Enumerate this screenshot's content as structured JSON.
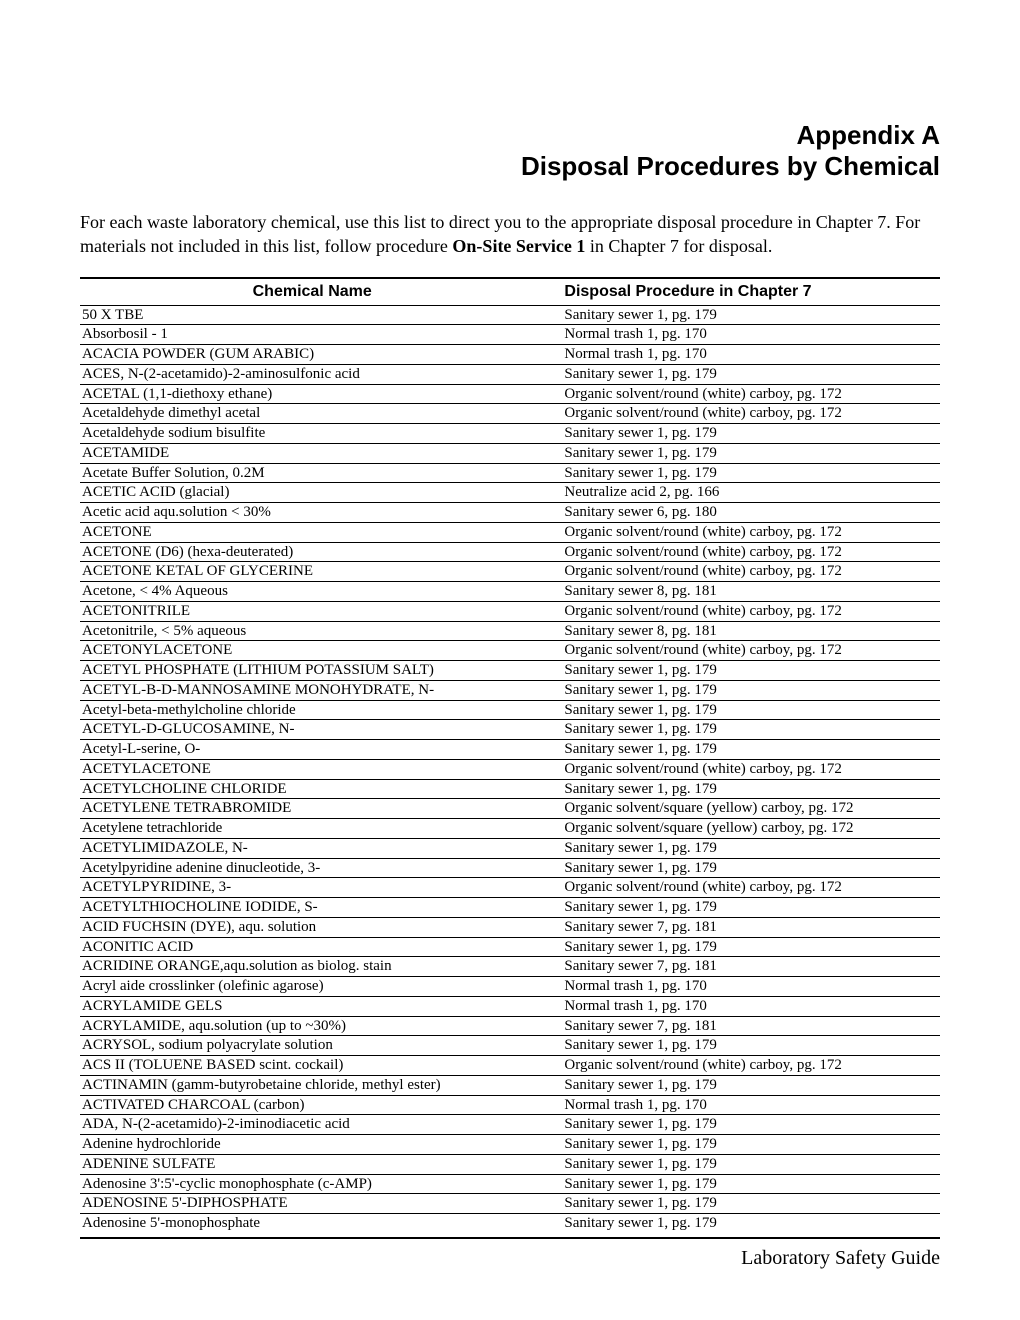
{
  "header": {
    "line1": "Appendix A",
    "line2": "Disposal Procedures by Chemical"
  },
  "intro": {
    "part1": "For each waste laboratory chemical, use this list to direct you to the appropriate disposal procedure in Chapter 7. For materials not included in this list, follow procedure ",
    "bold": "On-Site Service 1",
    "part2": " in Chapter 7 for disposal."
  },
  "table": {
    "columns": [
      "Chemical Name",
      "Disposal Procedure in Chapter 7"
    ],
    "col_widths": [
      "54%",
      "46%"
    ],
    "header_font": "Arial",
    "header_fontsize": 16,
    "body_font": "Times New Roman",
    "body_fontsize": 15,
    "border_color": "#000000",
    "rows": [
      {
        "chem": "50 X TBE",
        "proc": "Sanitary sewer 1, pg. 179",
        "full": true
      },
      {
        "chem": "Absorbosil - 1",
        "proc": "Normal trash 1, pg. 170",
        "full": true
      },
      {
        "chem": "ACACIA POWDER  (GUM ARABIC)",
        "proc": "Normal trash 1, pg. 170",
        "full": true
      },
      {
        "chem": "ACES, N-(2-acetamido)-2-aminosulfonic acid",
        "proc": "Sanitary sewer 1, pg. 179",
        "full": true
      },
      {
        "chem": "ACETAL (1,1-diethoxy ethane)",
        "proc": "Organic solvent/round (white) carboy, pg. 172",
        "full": true
      },
      {
        "chem": "Acetaldehyde dimethyl acetal",
        "proc": "Organic solvent/round (white) carboy, pg. 172",
        "full": true
      },
      {
        "chem": "Acetaldehyde sodium bisulfite",
        "proc": "Sanitary sewer 1, pg. 179",
        "full": true
      },
      {
        "chem": "ACETAMIDE",
        "proc": "Sanitary sewer 1, pg. 179",
        "full": true
      },
      {
        "chem": "Acetate Buffer Solution, 0.2M",
        "proc": "Sanitary sewer 1, pg. 179",
        "full": true
      },
      {
        "chem": "ACETIC ACID (glacial)",
        "proc": "Neutralize acid 2, pg. 166",
        "full": true
      },
      {
        "chem": "Acetic acid aqu.solution < 30%",
        "proc": "Sanitary sewer 6, pg. 180",
        "full": true
      },
      {
        "chem": "ACETONE",
        "proc": "Organic solvent/round (white) carboy, pg. 172",
        "full": true
      },
      {
        "chem": "ACETONE (D6) (hexa-deuterated)",
        "proc": "Organic solvent/round (white) carboy, pg. 172",
        "full": true
      },
      {
        "chem": "ACETONE KETAL OF GLYCERINE",
        "proc": "Organic solvent/round (white) carboy, pg. 172",
        "full": true
      },
      {
        "chem": "Acetone, < 4% Aqueous",
        "proc": "Sanitary sewer 8, pg. 181",
        "full": true
      },
      {
        "chem": "ACETONITRILE",
        "proc": "Organic solvent/round (white) carboy, pg. 172",
        "full": true
      },
      {
        "chem": "Acetonitrile, < 5% aqueous",
        "proc": "Sanitary sewer 8, pg. 181",
        "full": true
      },
      {
        "chem": "ACETONYLACETONE",
        "proc": "Organic solvent/round (white) carboy, pg. 172",
        "full": true
      },
      {
        "chem": "ACETYL PHOSPHATE (LITHIUM POTASSIUM SALT)",
        "proc": "Sanitary sewer 1, pg. 179",
        "full": true
      },
      {
        "chem": "ACETYL-B-D-MANNOSAMINE MONOHYDRATE, N-",
        "proc": "Sanitary sewer 1, pg. 179",
        "full": true
      },
      {
        "chem": "Acetyl-beta-methylcholine chloride",
        "proc": "Sanitary sewer 1, pg. 179",
        "full": true
      },
      {
        "chem": "ACETYL-D-GLUCOSAMINE, N-",
        "proc": "Sanitary sewer 1, pg. 179",
        "full": true
      },
      {
        "chem": "Acetyl-L-serine, O-",
        "proc": "Sanitary sewer 1, pg. 179",
        "full": true
      },
      {
        "chem": "ACETYLACETONE",
        "proc": "Organic solvent/round (white) carboy, pg. 172",
        "full": true
      },
      {
        "chem": "ACETYLCHOLINE CHLORIDE",
        "proc": "Sanitary sewer 1, pg. 179",
        "full": true
      },
      {
        "chem": "ACETYLENE TETRABROMIDE",
        "proc": "Organic solvent/square (yellow) carboy, pg. 172",
        "full": true
      },
      {
        "chem": "Acetylene tetrachloride",
        "proc": "Organic solvent/square (yellow) carboy, pg. 172",
        "full": true
      },
      {
        "chem": "ACETYLIMIDAZOLE, N-",
        "proc": "Sanitary sewer 1, pg. 179",
        "full": true
      },
      {
        "chem": "Acetylpyridine adenine dinucleotide, 3-",
        "proc": "Sanitary sewer 1, pg. 179",
        "full": true
      },
      {
        "chem": "ACETYLPYRIDINE, 3-",
        "proc": "Organic solvent/round (white) carboy, pg. 172",
        "full": true
      },
      {
        "chem": "ACETYLTHIOCHOLINE IODIDE, S-",
        "proc": "Sanitary sewer 1, pg. 179",
        "full": true
      },
      {
        "chem": "ACID FUCHSIN (DYE), aqu. solution",
        "proc": "Sanitary sewer 7, pg. 181",
        "full": true
      },
      {
        "chem": "ACONITIC ACID",
        "proc": "Sanitary sewer 1, pg. 179",
        "full": true
      },
      {
        "chem": "ACRIDINE ORANGE,aqu.solution as biolog. stain",
        "proc": "Sanitary sewer 7, pg. 181",
        "full": true
      },
      {
        "chem": "Acryl aide crosslinker (olefinic agarose)",
        "proc": "Normal trash 1, pg. 170",
        "full": true
      },
      {
        "chem": "ACRYLAMIDE GELS",
        "proc": "Normal trash 1, pg. 170",
        "full": true
      },
      {
        "chem": "ACRYLAMIDE, aqu.solution (up to ~30%)",
        "proc": "Sanitary sewer 7, pg. 181",
        "full": true
      },
      {
        "chem": "ACRYSOL, sodium polyacrylate solution",
        "proc": "Sanitary sewer 1, pg. 179",
        "full": true
      },
      {
        "chem": "ACS II (TOLUENE BASED scint. cockail)",
        "proc": "Organic solvent/round (white) carboy, pg. 172",
        "full": true
      },
      {
        "chem": "ACTINAMIN (gamm-butyrobetaine chloride, methyl ester)",
        "proc": "Sanitary sewer 1, pg. 179",
        "full": true
      },
      {
        "chem": "ACTIVATED CHARCOAL (carbon)",
        "proc": "Normal trash 1, pg. 170",
        "full": true
      },
      {
        "chem": "ADA, N-(2-acetamido)-2-iminodiacetic acid",
        "proc": "Sanitary sewer 1, pg. 179",
        "full": true
      },
      {
        "chem": "Adenine hydrochloride",
        "proc": "Sanitary sewer 1, pg. 179",
        "full": true
      },
      {
        "chem": "ADENINE SULFATE",
        "proc": "Sanitary sewer 1, pg. 179",
        "full": true
      },
      {
        "chem": "Adenosine 3':5'-cyclic monophosphate (c-AMP)",
        "proc": "Sanitary sewer 1, pg. 179",
        "full": true
      },
      {
        "chem": "ADENOSINE 5'-DIPHOSPHATE",
        "proc": "Sanitary sewer 1, pg. 179",
        "full": true
      },
      {
        "chem": "Adenosine 5'-monophosphate",
        "proc": "Sanitary sewer 1, pg. 179",
        "full": false
      }
    ]
  },
  "footer": "Laboratory Safety Guide"
}
